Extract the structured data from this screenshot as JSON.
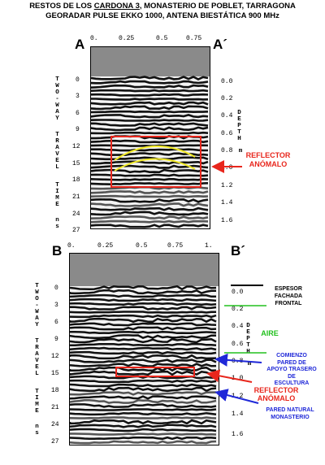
{
  "header": {
    "line1_before": "RESTOS DE LOS ",
    "line1_underlined": "CARDONA 3",
    "line1_after": ", MONASTERIO DE POBLET, TARRAGONA",
    "line2": "GEORADAR PULSE EKKO 1000, ANTENA BIESTÁTICA 900 MHz"
  },
  "panel_a": {
    "label_left": "A",
    "label_right": "A´",
    "x_ticks": [
      "0.",
      "0.25",
      "0.5",
      "0.75"
    ],
    "y_ticks": [
      "0",
      "3",
      "6",
      "9",
      "12",
      "15",
      "18",
      "21",
      "24",
      "27"
    ],
    "depth_ticks": [
      "0.0",
      "0.2",
      "0.4",
      "0.6",
      "0.8",
      "1.0",
      "1.2",
      "1.4",
      "1.6"
    ],
    "left_axis_words": [
      "TWO-WAY",
      "TRAVEL",
      "TIME",
      "ns"
    ],
    "right_axis_word": "DEPTH",
    "right_axis_unit": "m",
    "reflector_label": [
      "REFLECTOR",
      "ANÓMALO"
    ]
  },
  "panel_b": {
    "label_left": "B",
    "label_right": "B´",
    "x_ticks": [
      "0.",
      "0.25",
      "0.5",
      "0.75",
      "1."
    ],
    "y_ticks": [
      "0",
      "3",
      "6",
      "9",
      "12",
      "15",
      "18",
      "21",
      "24",
      "27"
    ],
    "depth_ticks": [
      "0.0",
      "0.2",
      "0.4",
      "0.6",
      "0.8",
      "1.0",
      "1.2",
      "1.4",
      "1.6"
    ],
    "left_axis_words": [
      "TWO-WAY",
      "TRAVEL",
      "TIME",
      "ns"
    ],
    "right_axis_word": "DEPTH",
    "right_axis_unit": "m",
    "annotations": {
      "espesor": [
        "ESPESOR",
        "FACHADA",
        "FRONTAL"
      ],
      "aire": "AIRE",
      "comienzo": [
        "COMIENZO",
        "PARED DE",
        "APOYO TRASERO",
        "DE",
        "ESCULTURA"
      ],
      "reflector": [
        "REFLECTOR",
        "ANÓMALO"
      ],
      "pared": [
        "PARED NATURAL",
        "MONASTERIO"
      ]
    }
  },
  "colors": {
    "red": "#e8261c",
    "yellow": "#f2ea2a",
    "green": "#22c01e",
    "blue": "#1f28d8"
  }
}
